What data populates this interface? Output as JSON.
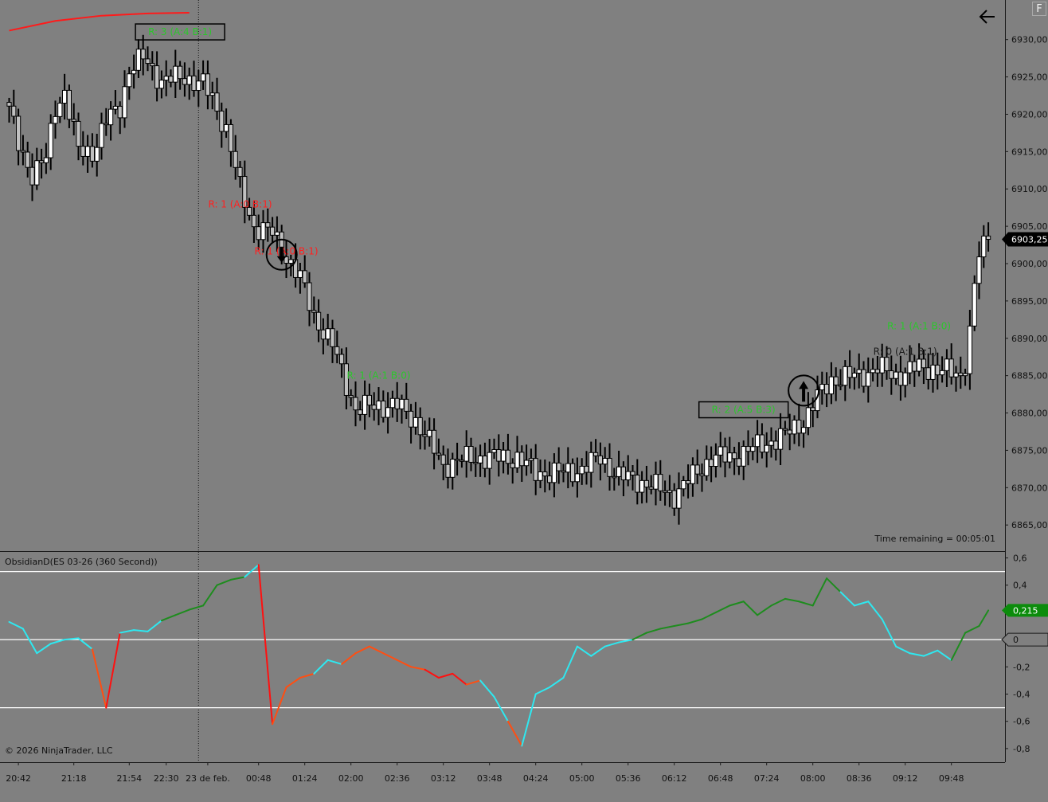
{
  "window": {
    "corner_button": "F"
  },
  "colors": {
    "background": "#808080",
    "axis_text": "#111111",
    "bull_body": "#ffffff",
    "bear_body": "#c0c0c0",
    "wick": "#000000",
    "ma_line": "#ff1a1a",
    "green_label": "#2cc62c",
    "red_label": "#ff2020",
    "dark_label": "#1a1a1a",
    "osc_cyan": "#2ee8f0",
    "osc_green": "#1e8c1e",
    "osc_orange": "#ff4e12",
    "osc_red": "#ff1010",
    "level_line": "#ffffff",
    "price_tag_bg": "#000000",
    "osc_tag_bg": "#0c8c0c"
  },
  "main_panel": {
    "time_remaining": "Time remaining = 00:05:01",
    "current_price_tag": "6903,25",
    "labels": [
      {
        "text": "R: 3 (A:4 B:1)",
        "boxed": true,
        "color": "green",
        "at_index": 37,
        "price": 6930.6
      },
      {
        "text": "R: 1 (A:0 B:1)",
        "boxed": false,
        "color": "red",
        "at_index": 50,
        "price": 6907.5
      },
      {
        "text": "R: 1 (A:0 B:1)",
        "boxed": false,
        "color": "red",
        "at_index": 60,
        "price": 6901.2
      },
      {
        "text": "R: 1 (A:1 B:0)",
        "boxed": false,
        "color": "green",
        "at_index": 80,
        "price": 6884.6
      },
      {
        "text": "R: 2 (A:5 B:3)",
        "boxed": true,
        "color": "green",
        "at_index": 159,
        "price": 6880.0
      },
      {
        "text": "R: 0 (A:1 B:1)",
        "boxed": false,
        "color": "dark",
        "at_index": 194,
        "price": 6887.8
      },
      {
        "text": "R: 1 (A:1 B:0)",
        "boxed": false,
        "color": "green",
        "at_index": 197,
        "price": 6891.2
      }
    ],
    "arrows": [
      {
        "direction": "down",
        "at_index": 59,
        "price": 6901.2
      },
      {
        "direction": "up",
        "at_index": 172,
        "price": 6883.0
      }
    ],
    "marker_index": 41
  },
  "osc_panel": {
    "title": "ObsidianD(ES 03-26 (360 Second))",
    "value_tag": "0,215",
    "zero_tag": "0",
    "copyright": "© 2026 NinjaTrader, LLC",
    "levels": [
      0.5,
      0,
      -0.5
    ]
  },
  "chart_data": [
    {
      "type": "candlestick",
      "title": "",
      "ylabel": "",
      "x_tick_labels": [
        "20:42",
        "21:18",
        "21:54",
        "22:30",
        "23 de feb.",
        "00:48",
        "01:24",
        "02:00",
        "02:36",
        "03:12",
        "03:48",
        "04:24",
        "05:00",
        "05:36",
        "06:12",
        "06:48",
        "07:24",
        "08:00",
        "08:36",
        "09:12",
        "09:48"
      ],
      "x_tick_index": [
        2,
        14,
        26,
        34,
        43,
        54,
        64,
        74,
        84,
        94,
        104,
        114,
        124,
        134,
        144,
        154,
        164,
        174,
        184,
        194,
        204
      ],
      "y_tick_labels": [
        "6865,00",
        "6870,00",
        "6875,00",
        "6880,00",
        "6885,00",
        "6890,00",
        "6895,00",
        "6900,00",
        "6905,00",
        "6910,00",
        "6915,00",
        "6920,00",
        "6925,00",
        "6930,00"
      ],
      "y_ticks": [
        6865,
        6870,
        6875,
        6880,
        6885,
        6890,
        6895,
        6900,
        6905,
        6910,
        6915,
        6920,
        6925,
        6930
      ],
      "ylim": [
        6861.5,
        6935.3
      ],
      "bar_count": 213,
      "ma_curve": {
        "name": "",
        "x_index": [
          0,
          10,
          20,
          30,
          39
        ],
        "y": [
          6931.2,
          6932.5,
          6933.2,
          6933.5,
          6933.6
        ]
      },
      "ohlc_waypoints": [
        {
          "i": 0,
          "p": 6920.5
        },
        {
          "i": 2,
          "p": 6916
        },
        {
          "i": 5,
          "p": 6912
        },
        {
          "i": 8,
          "p": 6914
        },
        {
          "i": 10,
          "p": 6921
        },
        {
          "i": 12,
          "p": 6923
        },
        {
          "i": 15,
          "p": 6915
        },
        {
          "i": 18,
          "p": 6915
        },
        {
          "i": 21,
          "p": 6919
        },
        {
          "i": 24,
          "p": 6921
        },
        {
          "i": 26,
          "p": 6926
        },
        {
          "i": 29,
          "p": 6927.5
        },
        {
          "i": 33,
          "p": 6924.5
        },
        {
          "i": 38,
          "p": 6925
        },
        {
          "i": 42,
          "p": 6924
        },
        {
          "i": 44,
          "p": 6922
        },
        {
          "i": 47,
          "p": 6918
        },
        {
          "i": 50,
          "p": 6910
        },
        {
          "i": 53,
          "p": 6905
        },
        {
          "i": 57,
          "p": 6904
        },
        {
          "i": 60,
          "p": 6901
        },
        {
          "i": 63,
          "p": 6898
        },
        {
          "i": 66,
          "p": 6893
        },
        {
          "i": 70,
          "p": 6889
        },
        {
          "i": 75,
          "p": 6880.5
        },
        {
          "i": 80,
          "p": 6881
        },
        {
          "i": 84,
          "p": 6881
        },
        {
          "i": 88,
          "p": 6879
        },
        {
          "i": 94,
          "p": 6873
        },
        {
          "i": 100,
          "p": 6874
        },
        {
          "i": 104,
          "p": 6874
        },
        {
          "i": 110,
          "p": 6874
        },
        {
          "i": 114,
          "p": 6872
        },
        {
          "i": 120,
          "p": 6872
        },
        {
          "i": 124,
          "p": 6872.5
        },
        {
          "i": 128,
          "p": 6874
        },
        {
          "i": 132,
          "p": 6871.5
        },
        {
          "i": 136,
          "p": 6871
        },
        {
          "i": 140,
          "p": 6870
        },
        {
          "i": 144,
          "p": 6869
        },
        {
          "i": 148,
          "p": 6871.5
        },
        {
          "i": 152,
          "p": 6874
        },
        {
          "i": 156,
          "p": 6874
        },
        {
          "i": 160,
          "p": 6875
        },
        {
          "i": 164,
          "p": 6876
        },
        {
          "i": 168,
          "p": 6877
        },
        {
          "i": 172,
          "p": 6879
        },
        {
          "i": 175,
          "p": 6882
        },
        {
          "i": 178,
          "p": 6884.5
        },
        {
          "i": 184,
          "p": 6885
        },
        {
          "i": 188,
          "p": 6886
        },
        {
          "i": 192,
          "p": 6885
        },
        {
          "i": 196,
          "p": 6886
        },
        {
          "i": 200,
          "p": 6886
        },
        {
          "i": 203,
          "p": 6885.5
        },
        {
          "i": 206,
          "p": 6885
        },
        {
          "i": 207,
          "p": 6887
        },
        {
          "i": 208,
          "p": 6891
        },
        {
          "i": 209,
          "p": 6897
        },
        {
          "i": 210,
          "p": 6901
        },
        {
          "i": 212,
          "p": 6903.25
        }
      ]
    },
    {
      "type": "line",
      "title": "ObsidianD(ES 03-26 (360 Second))",
      "ylim": [
        -0.9,
        0.65
      ],
      "y_ticks": [
        0.6,
        0.4,
        0.2,
        0,
        -0.2,
        -0.4,
        -0.6,
        -0.8
      ],
      "y_tick_labels": [
        "0,6",
        "0,4",
        "0,2",
        "0",
        "-0,2",
        "-0,4",
        "-0,6",
        "-0,8"
      ],
      "series": [
        {
          "name": "",
          "x_index": [
            0,
            3,
            6,
            9,
            12,
            15,
            18,
            21,
            24,
            27,
            30,
            33,
            36,
            39,
            42,
            45,
            48,
            51,
            54,
            57,
            60,
            63,
            66,
            69,
            72,
            75,
            78,
            81,
            84,
            87,
            90,
            93,
            96,
            99,
            102,
            105,
            108,
            111,
            114,
            117,
            120,
            123,
            126,
            129,
            132,
            135,
            138,
            141,
            144,
            147,
            150,
            153,
            156,
            159,
            162,
            165,
            168,
            171,
            174,
            177,
            180,
            183,
            186,
            189,
            192,
            195,
            198,
            201,
            204,
            207,
            210,
            212
          ],
          "values": [
            0.13,
            0.08,
            -0.1,
            -0.03,
            0.0,
            0.01,
            -0.07,
            -0.5,
            0.05,
            0.07,
            0.06,
            0.14,
            0.18,
            0.22,
            0.25,
            0.4,
            0.44,
            0.46,
            0.55,
            -0.62,
            -0.35,
            -0.28,
            -0.25,
            -0.15,
            -0.18,
            -0.1,
            -0.05,
            -0.1,
            -0.15,
            -0.2,
            -0.22,
            -0.28,
            -0.25,
            -0.33,
            -0.3,
            -0.42,
            -0.6,
            -0.78,
            -0.4,
            -0.35,
            -0.28,
            -0.05,
            -0.12,
            -0.05,
            -0.02,
            0.0,
            0.05,
            0.08,
            0.1,
            0.12,
            0.15,
            0.2,
            0.25,
            0.28,
            0.18,
            0.25,
            0.3,
            0.28,
            0.25,
            0.45,
            0.35,
            0.25,
            0.28,
            0.15,
            -0.05,
            -0.1,
            -0.12,
            -0.08,
            -0.15,
            0.05,
            0.1,
            0.215
          ],
          "colors": [
            "cyan",
            "cyan",
            "cyan",
            "cyan",
            "cyan",
            "cyan",
            "cyan",
            "orange",
            "red",
            "cyan",
            "cyan",
            "cyan",
            "green",
            "green",
            "green",
            "green",
            "green",
            "green",
            "cyan",
            "red",
            "orange",
            "orange",
            "orange",
            "cyan",
            "cyan",
            "orange",
            "orange",
            "orange",
            "orange",
            "orange",
            "orange",
            "red",
            "red",
            "red",
            "orange",
            "cyan",
            "cyan",
            "orange",
            "cyan",
            "cyan",
            "cyan",
            "cyan",
            "cyan",
            "cyan",
            "cyan",
            "cyan",
            "green",
            "green",
            "green",
            "green",
            "green",
            "green",
            "green",
            "green",
            "green",
            "green",
            "green",
            "green",
            "green",
            "green",
            "green",
            "cyan",
            "cyan",
            "cyan",
            "cyan",
            "cyan",
            "cyan",
            "cyan",
            "cyan",
            "green",
            "green",
            "green"
          ]
        }
      ]
    }
  ]
}
